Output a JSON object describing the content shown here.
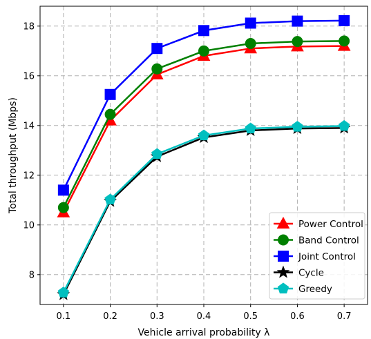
{
  "chart_data": {
    "type": "line",
    "xlabel": "Vehicle arrival probability λ",
    "ylabel": "Total throughput (Mbps)",
    "xlim": [
      0.05,
      0.75
    ],
    "ylim": [
      6.8,
      18.8
    ],
    "x": [
      0.1,
      0.2,
      0.3,
      0.4,
      0.5,
      0.6,
      0.7
    ],
    "x_ticks": [
      "0.1",
      "0.2",
      "0.3",
      "0.4",
      "0.5",
      "0.6",
      "0.7"
    ],
    "y_ticks": [
      8,
      10,
      12,
      14,
      16,
      18
    ],
    "grid": true,
    "legend_position": "lower-right",
    "series": [
      {
        "name": "Power Control",
        "color": "#ff0000",
        "marker": "triangle",
        "values": [
          10.5,
          14.2,
          16.05,
          16.8,
          17.1,
          17.18,
          17.2
        ]
      },
      {
        "name": "Band Control",
        "color": "#008000",
        "marker": "circle",
        "values": [
          10.7,
          14.45,
          16.28,
          17.0,
          17.3,
          17.38,
          17.4
        ]
      },
      {
        "name": "Joint Control",
        "color": "#0000ff",
        "marker": "square",
        "values": [
          11.4,
          15.25,
          17.1,
          17.82,
          18.12,
          18.2,
          18.22
        ]
      },
      {
        "name": "Cycle",
        "color": "#000000",
        "marker": "star",
        "values": [
          7.2,
          10.95,
          12.75,
          13.52,
          13.8,
          13.88,
          13.9
        ]
      },
      {
        "name": "Greedy",
        "color": "#00bfbf",
        "marker": "pentagon",
        "values": [
          7.28,
          11.02,
          12.85,
          13.6,
          13.88,
          13.95,
          13.98
        ]
      }
    ]
  }
}
